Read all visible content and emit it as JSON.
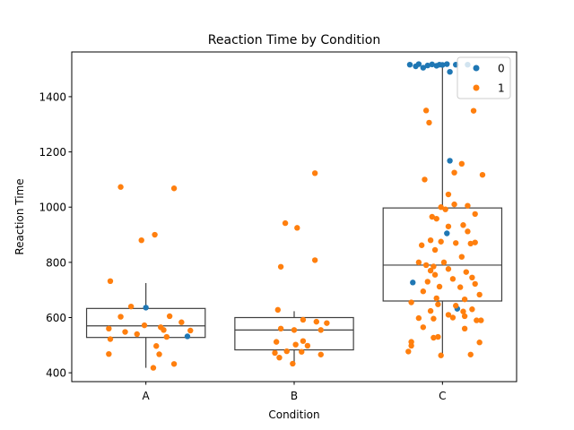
{
  "chart_data": {
    "type": "box",
    "title": "Reaction Time by Condition",
    "xlabel": "Condition",
    "ylabel": "Reaction Time",
    "categories": [
      "A",
      "B",
      "C"
    ],
    "ylim": [
      368,
      1562
    ],
    "yticks": [
      400,
      600,
      800,
      1000,
      1200,
      1400
    ],
    "grid": false,
    "legend": {
      "placement": "top-right",
      "entries": [
        {
          "label": "0",
          "color": "#1f77b4"
        },
        {
          "label": "1",
          "color": "#ff7f0e"
        }
      ]
    },
    "boxes": [
      {
        "category": "A",
        "whisker_low": 418,
        "q1": 528,
        "median": 570,
        "q3": 633,
        "whisker_high": 725
      },
      {
        "category": "B",
        "whisker_low": 432,
        "q1": 483,
        "median": 555,
        "q3": 600,
        "whisker_high": 623
      },
      {
        "category": "C",
        "whisker_low": 462,
        "q1": 660,
        "median": 790,
        "q3": 997,
        "whisker_high": 1515
      }
    ],
    "series": [
      {
        "name": "0",
        "color": "#1f77b4",
        "points": [
          [
            "A",
            0.0,
            636
          ],
          [
            "A",
            0.28,
            532
          ],
          [
            "C",
            -0.22,
            1516
          ],
          [
            "C",
            -0.18,
            1510
          ],
          [
            "C",
            -0.16,
            1518
          ],
          [
            "C",
            -0.13,
            1505
          ],
          [
            "C",
            -0.1,
            1513
          ],
          [
            "C",
            -0.07,
            1517
          ],
          [
            "C",
            -0.04,
            1512
          ],
          [
            "C",
            -0.02,
            1516
          ],
          [
            "C",
            0.0,
            1515
          ],
          [
            "C",
            0.03,
            1518
          ],
          [
            "C",
            0.05,
            1490
          ],
          [
            "C",
            0.09,
            1516
          ],
          [
            "C",
            0.17,
            1516
          ],
          [
            "C",
            0.05,
            1168
          ],
          [
            "C",
            0.03,
            905
          ],
          [
            "C",
            -0.2,
            727
          ],
          [
            "C",
            0.1,
            632
          ]
        ]
      },
      {
        "name": "1",
        "color": "#ff7f0e",
        "points": [
          [
            "A",
            -0.17,
            1073
          ],
          [
            "A",
            0.19,
            1068
          ],
          [
            "A",
            0.06,
            900
          ],
          [
            "A",
            -0.03,
            880
          ],
          [
            "A",
            -0.24,
            732
          ],
          [
            "A",
            -0.1,
            640
          ],
          [
            "A",
            -0.17,
            603
          ],
          [
            "A",
            0.16,
            605
          ],
          [
            "A",
            0.24,
            583
          ],
          [
            "A",
            -0.01,
            572
          ],
          [
            "A",
            0.1,
            565
          ],
          [
            "A",
            -0.25,
            560
          ],
          [
            "A",
            0.12,
            555
          ],
          [
            "A",
            0.3,
            553
          ],
          [
            "A",
            -0.14,
            548
          ],
          [
            "A",
            -0.06,
            540
          ],
          [
            "A",
            0.14,
            530
          ],
          [
            "A",
            -0.24,
            522
          ],
          [
            "A",
            0.07,
            497
          ],
          [
            "A",
            -0.25,
            468
          ],
          [
            "A",
            0.09,
            467
          ],
          [
            "A",
            0.19,
            432
          ],
          [
            "A",
            0.05,
            418
          ],
          [
            "B",
            0.14,
            1123
          ],
          [
            "B",
            -0.06,
            942
          ],
          [
            "B",
            0.02,
            925
          ],
          [
            "B",
            0.14,
            808
          ],
          [
            "B",
            -0.09,
            784
          ],
          [
            "B",
            -0.11,
            628
          ],
          [
            "B",
            0.06,
            592
          ],
          [
            "B",
            0.15,
            585
          ],
          [
            "B",
            0.22,
            580
          ],
          [
            "B",
            -0.09,
            560
          ],
          [
            "B",
            0.0,
            555
          ],
          [
            "B",
            0.18,
            555
          ],
          [
            "B",
            0.06,
            515
          ],
          [
            "B",
            -0.12,
            512
          ],
          [
            "B",
            0.01,
            502
          ],
          [
            "B",
            0.09,
            498
          ],
          [
            "B",
            -0.05,
            478
          ],
          [
            "B",
            0.05,
            476
          ],
          [
            "B",
            0.18,
            466
          ],
          [
            "B",
            -0.13,
            472
          ],
          [
            "B",
            -0.1,
            455
          ],
          [
            "B",
            -0.01,
            433
          ],
          [
            "C",
            -0.11,
            1350
          ],
          [
            "C",
            0.21,
            1349
          ],
          [
            "C",
            -0.09,
            1306
          ],
          [
            "C",
            0.13,
            1157
          ],
          [
            "C",
            0.08,
            1125
          ],
          [
            "C",
            0.27,
            1117
          ],
          [
            "C",
            -0.12,
            1100
          ],
          [
            "C",
            0.04,
            1046
          ],
          [
            "C",
            0.08,
            1010
          ],
          [
            "C",
            -0.01,
            1000
          ],
          [
            "C",
            0.17,
            1005
          ],
          [
            "C",
            0.02,
            992
          ],
          [
            "C",
            -0.07,
            965
          ],
          [
            "C",
            -0.04,
            958
          ],
          [
            "C",
            0.22,
            975
          ],
          [
            "C",
            0.04,
            930
          ],
          [
            "C",
            0.14,
            935
          ],
          [
            "C",
            0.17,
            912
          ],
          [
            "C",
            -0.08,
            880
          ],
          [
            "C",
            -0.01,
            875
          ],
          [
            "C",
            0.22,
            872
          ],
          [
            "C",
            -0.14,
            862
          ],
          [
            "C",
            0.09,
            870
          ],
          [
            "C",
            0.19,
            868
          ],
          [
            "C",
            -0.05,
            845
          ],
          [
            "C",
            0.13,
            820
          ],
          [
            "C",
            -0.16,
            800
          ],
          [
            "C",
            0.01,
            800
          ],
          [
            "C",
            -0.11,
            790
          ],
          [
            "C",
            -0.06,
            785
          ],
          [
            "C",
            -0.08,
            770
          ],
          [
            "C",
            0.04,
            776
          ],
          [
            "C",
            0.16,
            765
          ],
          [
            "C",
            -0.05,
            755
          ],
          [
            "C",
            0.2,
            745
          ],
          [
            "C",
            0.07,
            740
          ],
          [
            "C",
            -0.1,
            730
          ],
          [
            "C",
            0.22,
            722
          ],
          [
            "C",
            -0.02,
            712
          ],
          [
            "C",
            0.12,
            710
          ],
          [
            "C",
            -0.13,
            695
          ],
          [
            "C",
            0.25,
            683
          ],
          [
            "C",
            -0.04,
            670
          ],
          [
            "C",
            0.15,
            666
          ],
          [
            "C",
            -0.21,
            655
          ],
          [
            "C",
            -0.03,
            648
          ],
          [
            "C",
            0.09,
            643
          ],
          [
            "C",
            0.2,
            630
          ],
          [
            "C",
            -0.08,
            624
          ],
          [
            "C",
            0.14,
            622
          ],
          [
            "C",
            0.04,
            610
          ],
          [
            "C",
            0.15,
            605
          ],
          [
            "C",
            -0.16,
            598
          ],
          [
            "C",
            -0.06,
            596
          ],
          [
            "C",
            0.07,
            600
          ],
          [
            "C",
            0.23,
            590
          ],
          [
            "C",
            0.26,
            590
          ],
          [
            "C",
            -0.13,
            565
          ],
          [
            "C",
            0.15,
            560
          ],
          [
            "C",
            -0.06,
            527
          ],
          [
            "C",
            -0.03,
            530
          ],
          [
            "C",
            0.25,
            510
          ],
          [
            "C",
            -0.21,
            512
          ],
          [
            "C",
            -0.21,
            498
          ],
          [
            "C",
            -0.23,
            477
          ],
          [
            "C",
            0.19,
            466
          ],
          [
            "C",
            -0.01,
            463
          ]
        ]
      }
    ]
  }
}
